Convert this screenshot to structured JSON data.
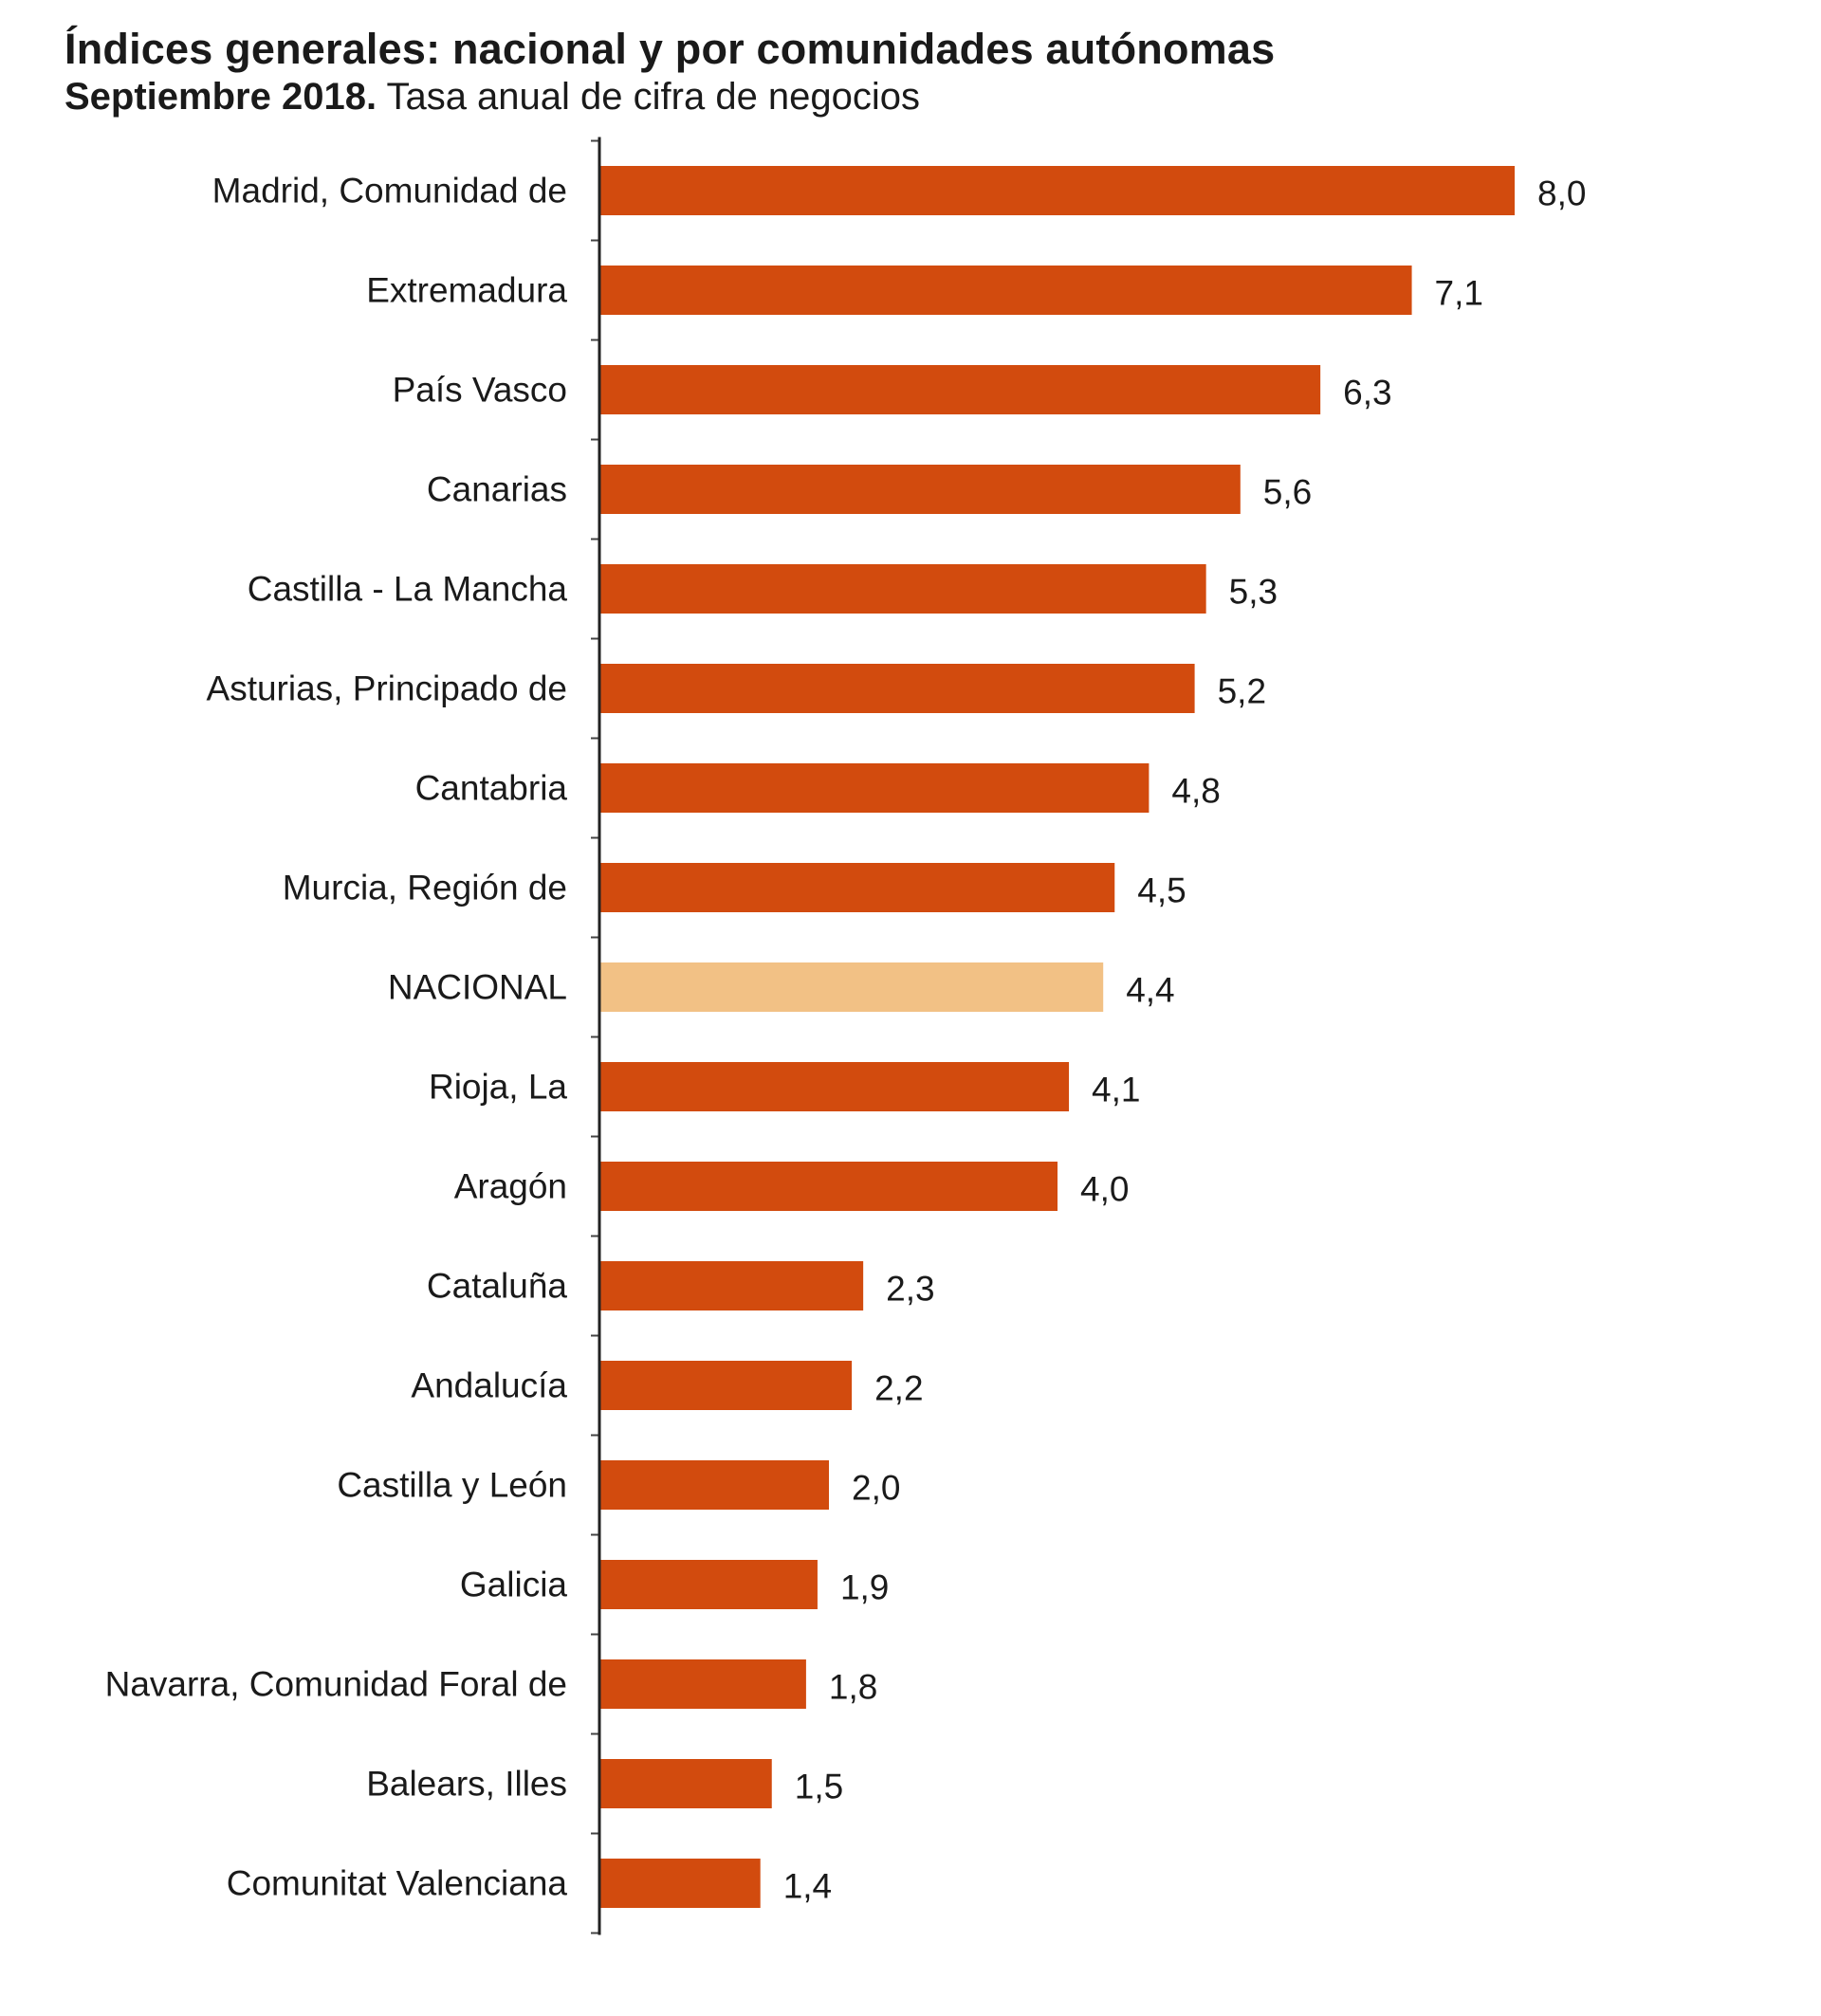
{
  "chart_data": {
    "type": "bar",
    "orientation": "horizontal",
    "title": "Índices generales: nacional y por comunidades autónomas",
    "subtitle_bold": "Septiembre 2018.",
    "subtitle": "Tasa anual de cifra de negocios",
    "categories": [
      "Madrid, Comunidad de",
      "Extremadura",
      "País Vasco",
      "Canarias",
      "Castilla - La Mancha",
      "Asturias, Principado de",
      "Cantabria",
      "Murcia, Región de",
      "NACIONAL",
      "Rioja, La",
      "Aragón",
      "Cataluña",
      "Andalucía",
      "Castilla y León",
      "Galicia",
      "Navarra, Comunidad Foral de",
      "Balears, Illes",
      "Comunitat Valenciana"
    ],
    "values": [
      8.0,
      7.1,
      6.3,
      5.6,
      5.3,
      5.2,
      4.8,
      4.5,
      4.4,
      4.1,
      4.0,
      2.3,
      2.2,
      2.0,
      1.9,
      1.8,
      1.5,
      1.4
    ],
    "value_labels": [
      "8,0",
      "7,1",
      "6,3",
      "5,6",
      "5,3",
      "5,2",
      "4,8",
      "4,5",
      "4,4",
      "4,1",
      "4,0",
      "2,3",
      "2,2",
      "2,0",
      "1,9",
      "1,8",
      "1,5",
      "1,4"
    ],
    "highlight_category": "NACIONAL",
    "colors": {
      "bar": "#D24B0E",
      "highlight": "#F2C185"
    },
    "xlim": [
      0,
      8.0
    ],
    "grid": false,
    "legend": "none"
  }
}
